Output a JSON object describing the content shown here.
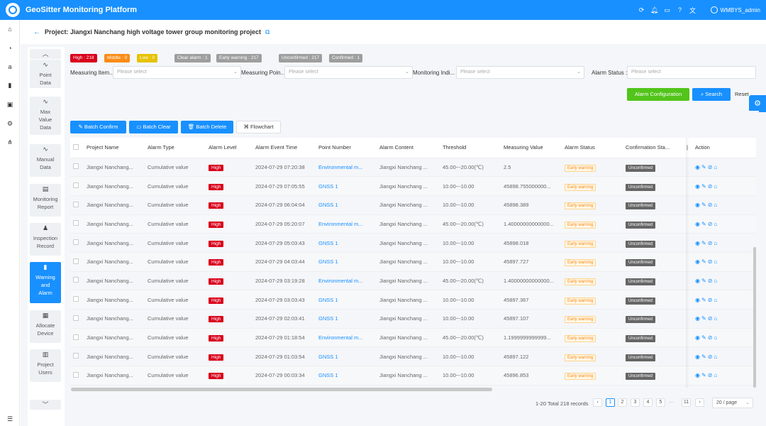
{
  "app": {
    "title": "GeoSitter Monitoring Platform",
    "user": "WMBYS_admin"
  },
  "topbar_icons": [
    "refresh-icon",
    "bell-icon",
    "monitor-icon",
    "help-icon",
    "translate-icon"
  ],
  "left_rail": [
    "home-icon",
    "dashboard-icon",
    "amazon-icon",
    "building-icon",
    "device-icon",
    "settings-icon",
    "network-icon",
    "menu-icon"
  ],
  "header": {
    "back": "←",
    "project_title": "Project: Jiangxi Nanchang high voltage tower group monitoring project"
  },
  "subnav": {
    "items": [
      {
        "label": "Point Data",
        "lines": [
          "Point",
          "Data"
        ]
      },
      {
        "label": "Max Value Data",
        "lines": [
          "Max",
          "Value",
          "Data"
        ]
      },
      {
        "label": "Manual Data",
        "lines": [
          "Manual",
          "Data"
        ]
      },
      {
        "label": "Monitoring Report",
        "lines": [
          "Monitoring",
          "Report"
        ]
      },
      {
        "label": "Inspection Record",
        "lines": [
          "Inspection",
          "Record"
        ]
      },
      {
        "label": "Warning and Alarm",
        "lines": [
          "Warning",
          "and",
          "Alarm"
        ],
        "active": true
      },
      {
        "label": "Allocate Device",
        "lines": [
          "Allocate",
          "Device"
        ]
      },
      {
        "label": "Project Users",
        "lines": [
          "Project",
          "Users"
        ]
      }
    ]
  },
  "tags": [
    {
      "text": "High : 218",
      "bg": "#d9001b",
      "fg": "#ffffff"
    },
    {
      "text": "Middle : 0",
      "bg": "#fa8c16",
      "fg": "#ffffff"
    },
    {
      "text": "Low : 0",
      "bg": "#e6c200",
      "fg": "#ffffff"
    },
    {
      "text": "Clear alarm : 1",
      "bg": "#9e9e9e",
      "fg": "#ffffff"
    },
    {
      "text": "Early warning : 217",
      "bg": "#9e9e9e",
      "fg": "#ffffff"
    },
    {
      "text": "Unconfirmed : 217",
      "bg": "#9e9e9e",
      "fg": "#ffffff"
    },
    {
      "text": "Confirmed : 1",
      "bg": "#9e9e9e",
      "fg": "#ffffff"
    }
  ],
  "filters": {
    "measuring_item": {
      "label": "Measuring Item...",
      "placeholder": "Please select"
    },
    "measuring_point": {
      "label": "Measuring Poin...",
      "placeholder": "Please select"
    },
    "monitoring_indicator": {
      "label": "Monitoring Indi...",
      "placeholder": "Please select"
    },
    "alarm_status": {
      "label": "Alarm Status :",
      "placeholder": "Please select"
    }
  },
  "buttons": {
    "alarm_configuration": "Alarm Configuration",
    "search": "Search",
    "reset": "Reset",
    "batch_confirm": "Batch Confirm",
    "batch_clear": "Batch Clear",
    "batch_delete": "Batch Delete",
    "flowchart": "Flowchart"
  },
  "table": {
    "columns": [
      "Project Name",
      "Alarm Type",
      "Alarm Level",
      "Alarm Event Time",
      "Point Number",
      "Alarm Content",
      "Threshold",
      "Measuring Value",
      "Alarm Status",
      "Confirmation Sta...",
      "Action"
    ],
    "rows": [
      {
        "project": "Jiangxi Nanchang...",
        "type": "Cumulative value",
        "level": "High",
        "time": "2024-07-29 07:20:38",
        "point": "Environmental m...",
        "content": "Jiangxi Nanchang ...",
        "threshold": "45.00~-20.00(℃)",
        "value": "2.5",
        "status": "Early warning",
        "confirm": "Unconfirmed"
      },
      {
        "project": "Jiangxi Nanchang...",
        "type": "Cumulative value",
        "level": "High",
        "time": "2024-07-29 07:05:55",
        "point": "GNSS 1",
        "content": "Jiangxi Nanchang ...",
        "threshold": "10.00~-10.00",
        "value": "45898.755000000...",
        "status": "Early warning",
        "confirm": "Unconfirmed"
      },
      {
        "project": "Jiangxi Nanchang...",
        "type": "Cumulative value",
        "level": "High",
        "time": "2024-07-29 06:04:04",
        "point": "GNSS 1",
        "content": "Jiangxi Nanchang ...",
        "threshold": "10.00~-10.00",
        "value": "45898.389",
        "status": "Early warning",
        "confirm": "Unconfirmed"
      },
      {
        "project": "Jiangxi Nanchang...",
        "type": "Cumulative value",
        "level": "High",
        "time": "2024-07-29 05:20:07",
        "point": "Environmental m...",
        "content": "Jiangxi Nanchang ...",
        "threshold": "45.00~-20.00(℃)",
        "value": "1.40000000000000...",
        "status": "Early warning",
        "confirm": "Unconfirmed"
      },
      {
        "project": "Jiangxi Nanchang...",
        "type": "Cumulative value",
        "level": "High",
        "time": "2024-07-29 05:03:43",
        "point": "GNSS 1",
        "content": "Jiangxi Nanchang ...",
        "threshold": "10.00~-10.00",
        "value": "45898.018",
        "status": "Early warning",
        "confirm": "Unconfirmed"
      },
      {
        "project": "Jiangxi Nanchang...",
        "type": "Cumulative value",
        "level": "High",
        "time": "2024-07-29 04:03:44",
        "point": "GNSS 1",
        "content": "Jiangxi Nanchang ...",
        "threshold": "10.00~-10.00",
        "value": "45897.727",
        "status": "Early warning",
        "confirm": "Unconfirmed"
      },
      {
        "project": "Jiangxi Nanchang...",
        "type": "Cumulative value",
        "level": "High",
        "time": "2024-07-29 03:19:28",
        "point": "Environmental m...",
        "content": "Jiangxi Nanchang ...",
        "threshold": "45.00~-20.00(℃)",
        "value": "1.40000000000000...",
        "status": "Early warning",
        "confirm": "Unconfirmed"
      },
      {
        "project": "Jiangxi Nanchang...",
        "type": "Cumulative value",
        "level": "High",
        "time": "2024-07-29 03:03:43",
        "point": "GNSS 1",
        "content": "Jiangxi Nanchang ...",
        "threshold": "10.00~-10.00",
        "value": "45897.367",
        "status": "Early warning",
        "confirm": "Unconfirmed"
      },
      {
        "project": "Jiangxi Nanchang...",
        "type": "Cumulative value",
        "level": "High",
        "time": "2024-07-29 02:03:41",
        "point": "GNSS 1",
        "content": "Jiangxi Nanchang ...",
        "threshold": "10.00~-10.00",
        "value": "45897.107",
        "status": "Early warning",
        "confirm": "Unconfirmed"
      },
      {
        "project": "Jiangxi Nanchang...",
        "type": "Cumulative value",
        "level": "High",
        "time": "2024-07-29 01:18:54",
        "point": "Environmental m...",
        "content": "Jiangxi Nanchang ...",
        "threshold": "45.00~-20.00(℃)",
        "value": "1.1999999999999...",
        "status": "Early warning",
        "confirm": "Unconfirmed"
      },
      {
        "project": "Jiangxi Nanchang...",
        "type": "Cumulative value",
        "level": "High",
        "time": "2024-07-29 01:03:54",
        "point": "GNSS 1",
        "content": "Jiangxi Nanchang ...",
        "threshold": "10.00~-10.00",
        "value": "45897.122",
        "status": "Early warning",
        "confirm": "Unconfirmed"
      },
      {
        "project": "Jiangxi Nanchang...",
        "type": "Cumulative value",
        "level": "High",
        "time": "2024-07-29 00:03:34",
        "point": "GNSS 1",
        "content": "Jiangxi Nanchang ...",
        "threshold": "10.00~-10.00",
        "value": "45896.853",
        "status": "Early warning",
        "confirm": "Unconfirmed"
      }
    ]
  },
  "pagination": {
    "summary": "1-20 Total 218 records",
    "pages": [
      "1",
      "2",
      "3",
      "4",
      "5",
      "···",
      "11"
    ],
    "current": "1",
    "page_size": "20 / page"
  }
}
